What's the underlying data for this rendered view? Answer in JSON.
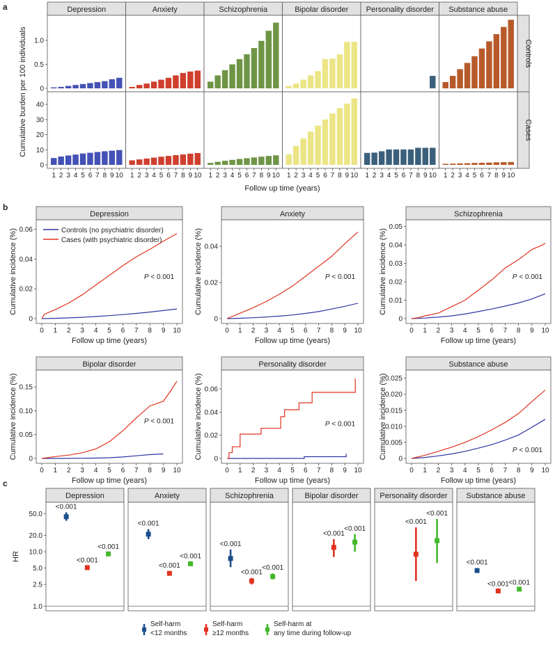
{
  "panel_labels": {
    "a": "a",
    "b": "b",
    "c": "c"
  },
  "colors": {
    "Depression": "#4451b5",
    "Anxiety": "#cf3f2e",
    "Schizophrenia": "#6e9546",
    "Bipolar disorder": "#ece586",
    "Personality disorder": "#3c607b",
    "Substance abuse": "#b75a2b",
    "controls_line": "#2e35a0",
    "cases_line": "#e0321f",
    "hr_lt12": "#1b4f8c",
    "hr_ge12": "#e0321f",
    "hr_any": "#43b82b"
  },
  "chart_data": [
    {
      "id": "a",
      "type": "bar",
      "facets": [
        "Depression",
        "Anxiety",
        "Schizophrenia",
        "Bipolar disorder",
        "Personality disorder",
        "Substance abuse"
      ],
      "row_labels": [
        "Controls",
        "Cases"
      ],
      "categories": [
        "1",
        "2",
        "3",
        "4",
        "5",
        "6",
        "7",
        "8",
        "9",
        "10"
      ],
      "ylabel": "Cumulative burden per 100 individuals",
      "xlabel": "Follow up time (years)",
      "rows": [
        {
          "name": "Controls",
          "ylim": [
            0,
            1.45
          ],
          "yticks": [
            "0",
            "0.5",
            "1.0"
          ],
          "ytick_values": [
            0,
            0.5,
            1.0
          ],
          "series": {
            "Depression": [
              0.02,
              0.03,
              0.05,
              0.07,
              0.09,
              0.11,
              0.13,
              0.15,
              0.19,
              0.22
            ],
            "Anxiety": [
              0.03,
              0.07,
              0.1,
              0.14,
              0.18,
              0.22,
              0.27,
              0.32,
              0.35,
              0.37
            ],
            "Schizophrenia": [
              0.14,
              0.27,
              0.38,
              0.5,
              0.61,
              0.71,
              0.84,
              0.99,
              1.2,
              1.37
            ],
            "Bipolar disorder": [
              0.05,
              0.1,
              0.18,
              0.27,
              0.36,
              0.61,
              0.62,
              0.71,
              0.97,
              0.97
            ],
            "Personality disorder": [
              0,
              0,
              0,
              0,
              0,
              0,
              0,
              0,
              0,
              0.26
            ],
            "Substance abuse": [
              0.13,
              0.26,
              0.4,
              0.53,
              0.67,
              0.83,
              0.98,
              1.13,
              1.28,
              1.43
            ]
          }
        },
        {
          "name": "Cases",
          "ylim": [
            0,
            46
          ],
          "yticks": [
            "0",
            "10",
            "20",
            "30",
            "40"
          ],
          "ytick_values": [
            0,
            10,
            20,
            30,
            40
          ],
          "series": {
            "Depression": [
              4.5,
              5.5,
              6.2,
              6.8,
              7.5,
              8.0,
              8.5,
              9.0,
              9.4,
              9.8
            ],
            "Anxiety": [
              3.0,
              3.6,
              4.2,
              4.8,
              5.4,
              5.9,
              6.4,
              6.9,
              7.4,
              7.8
            ],
            "Schizophrenia": [
              1.3,
              2.0,
              2.7,
              3.3,
              3.9,
              4.4,
              4.9,
              5.4,
              5.9,
              6.3
            ],
            "Bipolar disorder": [
              7.0,
              12.5,
              17.5,
              22.0,
              26.0,
              30.0,
              34.0,
              37.5,
              40.5,
              44.0
            ],
            "Personality disorder": [
              7.9,
              8.1,
              9.0,
              10.2,
              10.2,
              10.2,
              10.2,
              11.3,
              11.3,
              11.3
            ],
            "Substance abuse": [
              0.7,
              0.8,
              1.0,
              1.1,
              1.3,
              1.4,
              1.5,
              1.7,
              1.8,
              1.9
            ]
          }
        }
      ]
    },
    {
      "id": "b",
      "type": "line",
      "xlabel": "Follow up time (years)",
      "ylabel": "Cumulative incidence (%)",
      "xticks": [
        "0",
        "1",
        "2",
        "3",
        "4",
        "5",
        "6",
        "7",
        "8",
        "9",
        "10"
      ],
      "legend": [
        "Controls (no psychiatric disorder)",
        "Cases (with psychiatric disorder)"
      ],
      "p_label": "P",
      "p_value": " < 0.001",
      "panels": [
        {
          "title": "Depression",
          "ylim": [
            0,
            0.063
          ],
          "yticks": [
            "0",
            "0.02",
            "0.04",
            "0.06"
          ],
          "ytick_values": [
            0,
            0.02,
            0.04,
            0.06
          ],
          "controls": {
            "x": [
              0,
              1,
              2,
              3,
              4,
              5,
              6,
              7,
              8,
              9,
              10
            ],
            "y": [
              0,
              0.0002,
              0.0005,
              0.0009,
              0.0014,
              0.002,
              0.0027,
              0.0035,
              0.0044,
              0.0054,
              0.0065
            ]
          },
          "cases": {
            "x": [
              0,
              0.2,
              1,
              2,
              3,
              4,
              5,
              6,
              7,
              8,
              9,
              10
            ],
            "y": [
              0,
              0.003,
              0.006,
              0.0105,
              0.016,
              0.0225,
              0.029,
              0.0355,
              0.0415,
              0.0465,
              0.052,
              0.057
            ]
          }
        },
        {
          "title": "Anxiety",
          "ylim": [
            0,
            0.052
          ],
          "yticks": [
            "0",
            "0.02",
            "0.04"
          ],
          "ytick_values": [
            0,
            0.02,
            0.04
          ],
          "controls": {
            "x": [
              0,
              1,
              2,
              3,
              4,
              5,
              6,
              7,
              8,
              9,
              10
            ],
            "y": [
              0,
              0.0002,
              0.0005,
              0.0009,
              0.0014,
              0.002,
              0.0029,
              0.0039,
              0.0053,
              0.0068,
              0.0085
            ]
          },
          "cases": {
            "x": [
              0,
              1,
              2,
              3,
              4,
              5,
              6,
              7,
              8,
              9,
              10
            ],
            "y": [
              0,
              0.003,
              0.006,
              0.0095,
              0.0135,
              0.018,
              0.0235,
              0.029,
              0.0345,
              0.0415,
              0.048
            ]
          }
        },
        {
          "title": "Schizophrenia",
          "ylim": [
            0,
            0.051
          ],
          "yticks": [
            "0",
            "0.01",
            "0.02",
            "0.03",
            "0.04",
            "0.05"
          ],
          "ytick_values": [
            0,
            0.01,
            0.02,
            0.03,
            0.04,
            0.05
          ],
          "controls": {
            "x": [
              0,
              1,
              2,
              3,
              4,
              5,
              6,
              7,
              8,
              9,
              10
            ],
            "y": [
              0,
              0.0003,
              0.0008,
              0.0015,
              0.0025,
              0.0038,
              0.0052,
              0.0068,
              0.0085,
              0.0107,
              0.0135
            ]
          },
          "cases": {
            "x": [
              0,
              0.5,
              1,
              2,
              3,
              4,
              5,
              6,
              7,
              8,
              9,
              9.8,
              10
            ],
            "y": [
              0,
              0.0005,
              0.0015,
              0.003,
              0.0065,
              0.01,
              0.0155,
              0.021,
              0.0275,
              0.032,
              0.0375,
              0.04,
              0.041
            ]
          }
        },
        {
          "title": "Bipolar disorder",
          "ylim": [
            0,
            0.175
          ],
          "yticks": [
            "0",
            "0.05",
            "0.10",
            "0.15"
          ],
          "ytick_values": [
            0,
            0.05,
            0.1,
            0.15
          ],
          "controls": {
            "x": [
              0,
              1,
              2,
              3,
              4,
              5,
              6,
              7,
              8,
              9
            ],
            "y": [
              0,
              0,
              0.0002,
              0.0005,
              0.0008,
              0.0015,
              0.003,
              0.0055,
              0.008,
              0.0095
            ]
          },
          "cases": {
            "x": [
              0,
              1,
              2,
              3,
              4,
              5,
              6,
              7,
              8,
              9,
              9.5,
              10
            ],
            "y": [
              0,
              0.004,
              0.007,
              0.012,
              0.02,
              0.035,
              0.058,
              0.085,
              0.11,
              0.12,
              0.14,
              0.162
            ]
          }
        },
        {
          "title": "Personality disorder",
          "ylim": [
            0,
            0.072
          ],
          "yticks": [
            "0",
            "0.02",
            "0.04",
            "0.06"
          ],
          "ytick_values": [
            0,
            0.02,
            0.04,
            0.06
          ],
          "controls": {
            "x": [
              0,
              5.9,
              5.9,
              9.1,
              9.1
            ],
            "y": [
              0,
              0,
              0.0015,
              0.0015,
              0.004
            ]
          },
          "cases": {
            "x": [
              0,
              0.15,
              0.15,
              0.4,
              0.4,
              1,
              1,
              2.6,
              2.6,
              4.1,
              4.1,
              4.4,
              4.4,
              5.5,
              5.5,
              6.5,
              6.5,
              9.8,
              9.8
            ],
            "y": [
              0,
              0,
              0.005,
              0.005,
              0.01,
              0.01,
              0.021,
              0.021,
              0.026,
              0.026,
              0.036,
              0.036,
              0.042,
              0.042,
              0.048,
              0.048,
              0.057,
              0.057,
              0.069
            ]
          }
        },
        {
          "title": "Substance abuse",
          "ylim": [
            0,
            0.026
          ],
          "yticks": [
            "0",
            "0.005",
            "0.010",
            "0.015",
            "0.020",
            "0.025"
          ],
          "ytick_values": [
            0,
            0.005,
            0.01,
            0.015,
            0.02,
            0.025
          ],
          "controls": {
            "x": [
              0,
              1,
              2,
              3,
              4,
              5,
              6,
              7,
              8,
              9,
              10
            ],
            "y": [
              0,
              0.0003,
              0.0008,
              0.0014,
              0.0022,
              0.0032,
              0.0043,
              0.0057,
              0.0073,
              0.0097,
              0.0122
            ]
          },
          "cases": {
            "x": [
              0,
              1,
              2,
              3,
              4,
              5,
              6,
              7,
              8,
              9,
              10
            ],
            "y": [
              0,
              0.001,
              0.0022,
              0.0035,
              0.005,
              0.0068,
              0.0089,
              0.0112,
              0.014,
              0.0177,
              0.0213
            ]
          }
        }
      ]
    },
    {
      "id": "c",
      "type": "scatter",
      "subtype": "forest",
      "ylabel": "HR",
      "yscale": "log",
      "ylim": [
        0.95,
        70
      ],
      "yticks": [
        "1.0",
        "2.5",
        "5.0",
        "10.0",
        "20.0",
        "50.0"
      ],
      "ytick_values": [
        1,
        2.5,
        5,
        10,
        20,
        50
      ],
      "legend": [
        {
          "line1": "Self-harm",
          "line2": "<12 months"
        },
        {
          "line1": "Self-harm",
          "line2": "≥12 months"
        },
        {
          "line1": "Self-harm at",
          "line2": "any time during follow-up"
        }
      ],
      "panels": [
        {
          "title": "Depression",
          "points": [
            {
              "slot": 0,
              "hr": 44,
              "lo": 37,
              "hi": 53,
              "p": "<0.001"
            },
            {
              "slot": 1,
              "hr": 5.1,
              "lo": 4.8,
              "hi": 5.5,
              "p": "<0.001"
            },
            {
              "slot": 2,
              "hr": 9.1,
              "lo": 8.6,
              "hi": 9.7,
              "p": "<0.001"
            }
          ]
        },
        {
          "title": "Anxiety",
          "points": [
            {
              "slot": 0,
              "hr": 21,
              "lo": 17,
              "hi": 26,
              "p": "<0.001"
            },
            {
              "slot": 1,
              "hr": 4.0,
              "lo": 3.7,
              "hi": 4.4,
              "p": "<0.001"
            },
            {
              "slot": 2,
              "hr": 6.0,
              "lo": 5.6,
              "hi": 6.5,
              "p": "<0.001"
            }
          ]
        },
        {
          "title": "Schizophrenia",
          "points": [
            {
              "slot": 0,
              "hr": 7.5,
              "lo": 5.2,
              "hi": 11.0,
              "p": "<0.001"
            },
            {
              "slot": 1,
              "hr": 2.9,
              "lo": 2.5,
              "hi": 3.3,
              "p": "<0.001"
            },
            {
              "slot": 2,
              "hr": 3.5,
              "lo": 3.1,
              "hi": 4.0,
              "p": "<0.001"
            }
          ]
        },
        {
          "title": "Bipolar disorder",
          "points": [
            {
              "slot": 1,
              "hr": 12,
              "lo": 8,
              "hi": 17,
              "p": "<0.001"
            },
            {
              "slot": 2,
              "hr": 15,
              "lo": 10,
              "hi": 21,
              "p": "<0.001"
            }
          ]
        },
        {
          "title": "Personality disorder",
          "points": [
            {
              "slot": 1,
              "hr": 9,
              "lo": 2.9,
              "hi": 28,
              "p": "<0.001"
            },
            {
              "slot": 2,
              "hr": 16,
              "lo": 6.2,
              "hi": 40,
              "p": "<0.001"
            }
          ]
        },
        {
          "title": "Substance abuse",
          "points": [
            {
              "slot": 0,
              "hr": 4.5,
              "lo": 4.1,
              "hi": 5.0,
              "p": "<0.001"
            },
            {
              "slot": 1,
              "hr": 1.9,
              "lo": 1.8,
              "hi": 2.0,
              "p": "<0.001"
            },
            {
              "slot": 2,
              "hr": 2.05,
              "lo": 1.95,
              "hi": 2.15,
              "p": "<0.001"
            }
          ]
        }
      ]
    }
  ]
}
